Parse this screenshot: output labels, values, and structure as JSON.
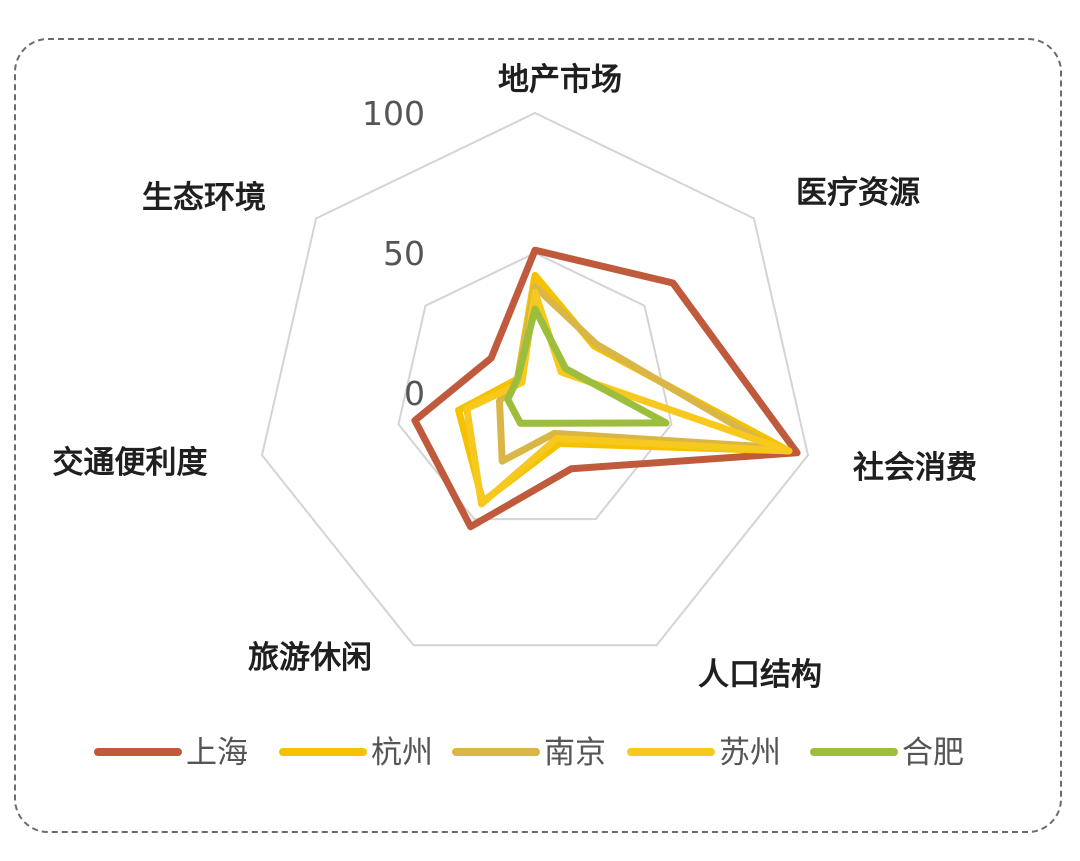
{
  "chart_data": {
    "type": "radar",
    "categories": [
      "地产市场",
      "医疗资源",
      "社会消费",
      "人口结构",
      "旅游休闲",
      "交通便利度",
      "生态环境"
    ],
    "axis": {
      "min": 0,
      "max": 100,
      "ticks": [
        0,
        50,
        100
      ],
      "grid": true
    },
    "series": [
      {
        "name": "上海",
        "color": "#bf5b3c",
        "values": [
          51,
          63,
          96,
          30,
          53,
          44,
          20
        ]
      },
      {
        "name": "杭州",
        "color": "#f5c200",
        "values": [
          42,
          27,
          93,
          20,
          43,
          28,
          8
        ]
      },
      {
        "name": "南京",
        "color": "#d9b645",
        "values": [
          38,
          28,
          87,
          16,
          27,
          13,
          8
        ]
      },
      {
        "name": "苏州",
        "color": "#f7c81d",
        "values": [
          36,
          12,
          93,
          18,
          44,
          25,
          6
        ]
      },
      {
        "name": "合肥",
        "color": "#9cbe3c",
        "values": [
          30,
          14,
          48,
          12,
          12,
          10,
          8
        ]
      }
    ],
    "legend_position": "bottom"
  }
}
